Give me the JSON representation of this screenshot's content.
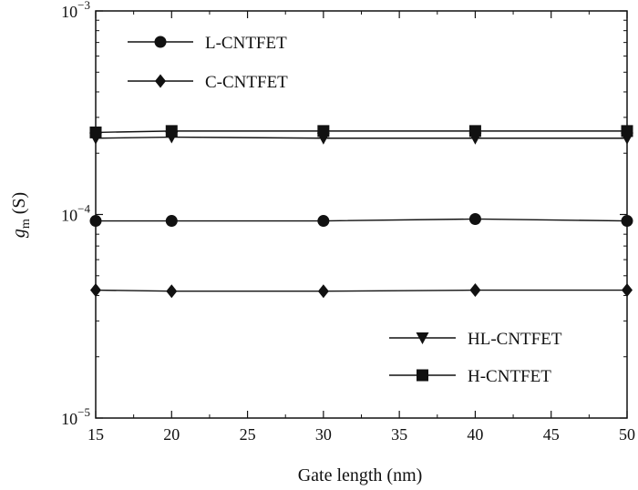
{
  "chart_data": {
    "type": "line",
    "x_axis": {
      "label": "Gate length (nm)",
      "range": [
        15,
        50
      ],
      "ticks": [
        "15",
        "20",
        "25",
        "30",
        "35",
        "40",
        "45",
        "50"
      ]
    },
    "y_axis": {
      "label_main": "g",
      "label_sub": "m",
      "label_unit": " (S)",
      "scale": "log",
      "range": [
        1e-05,
        0.001
      ],
      "ticks": [
        {
          "value": 1e-05,
          "base": "10",
          "exp": "−5"
        },
        {
          "value": 0.0001,
          "base": "10",
          "exp": "−4"
        },
        {
          "value": 0.001,
          "base": "10",
          "exp": "−3"
        }
      ]
    },
    "grid": false,
    "x": [
      15,
      20,
      30,
      40,
      50
    ],
    "series": [
      {
        "name": "L-CNTFET",
        "marker": "circle",
        "values": [
          9.3e-05,
          9.3e-05,
          9.3e-05,
          9.5e-05,
          9.3e-05
        ]
      },
      {
        "name": "C-CNTFET",
        "marker": "diamond",
        "values": [
          4.25e-05,
          4.2e-05,
          4.2e-05,
          4.25e-05,
          4.25e-05
        ]
      },
      {
        "name": "HL-CNTFET",
        "marker": "triangle-down",
        "values": [
          0.000237,
          0.00024,
          0.000237,
          0.000237,
          0.000237
        ]
      },
      {
        "name": "H-CNTFET",
        "marker": "square",
        "values": [
          0.000253,
          0.000257,
          0.000257,
          0.000257,
          0.000257
        ]
      }
    ],
    "legends": [
      {
        "placement": "top-left",
        "entries": [
          "L-CNTFET",
          "C-CNTFET"
        ]
      },
      {
        "placement": "bottom-right",
        "entries": [
          "HL-CNTFET",
          "H-CNTFET"
        ]
      }
    ],
    "colors": {
      "line": "#111111",
      "background": "#ffffff"
    }
  }
}
